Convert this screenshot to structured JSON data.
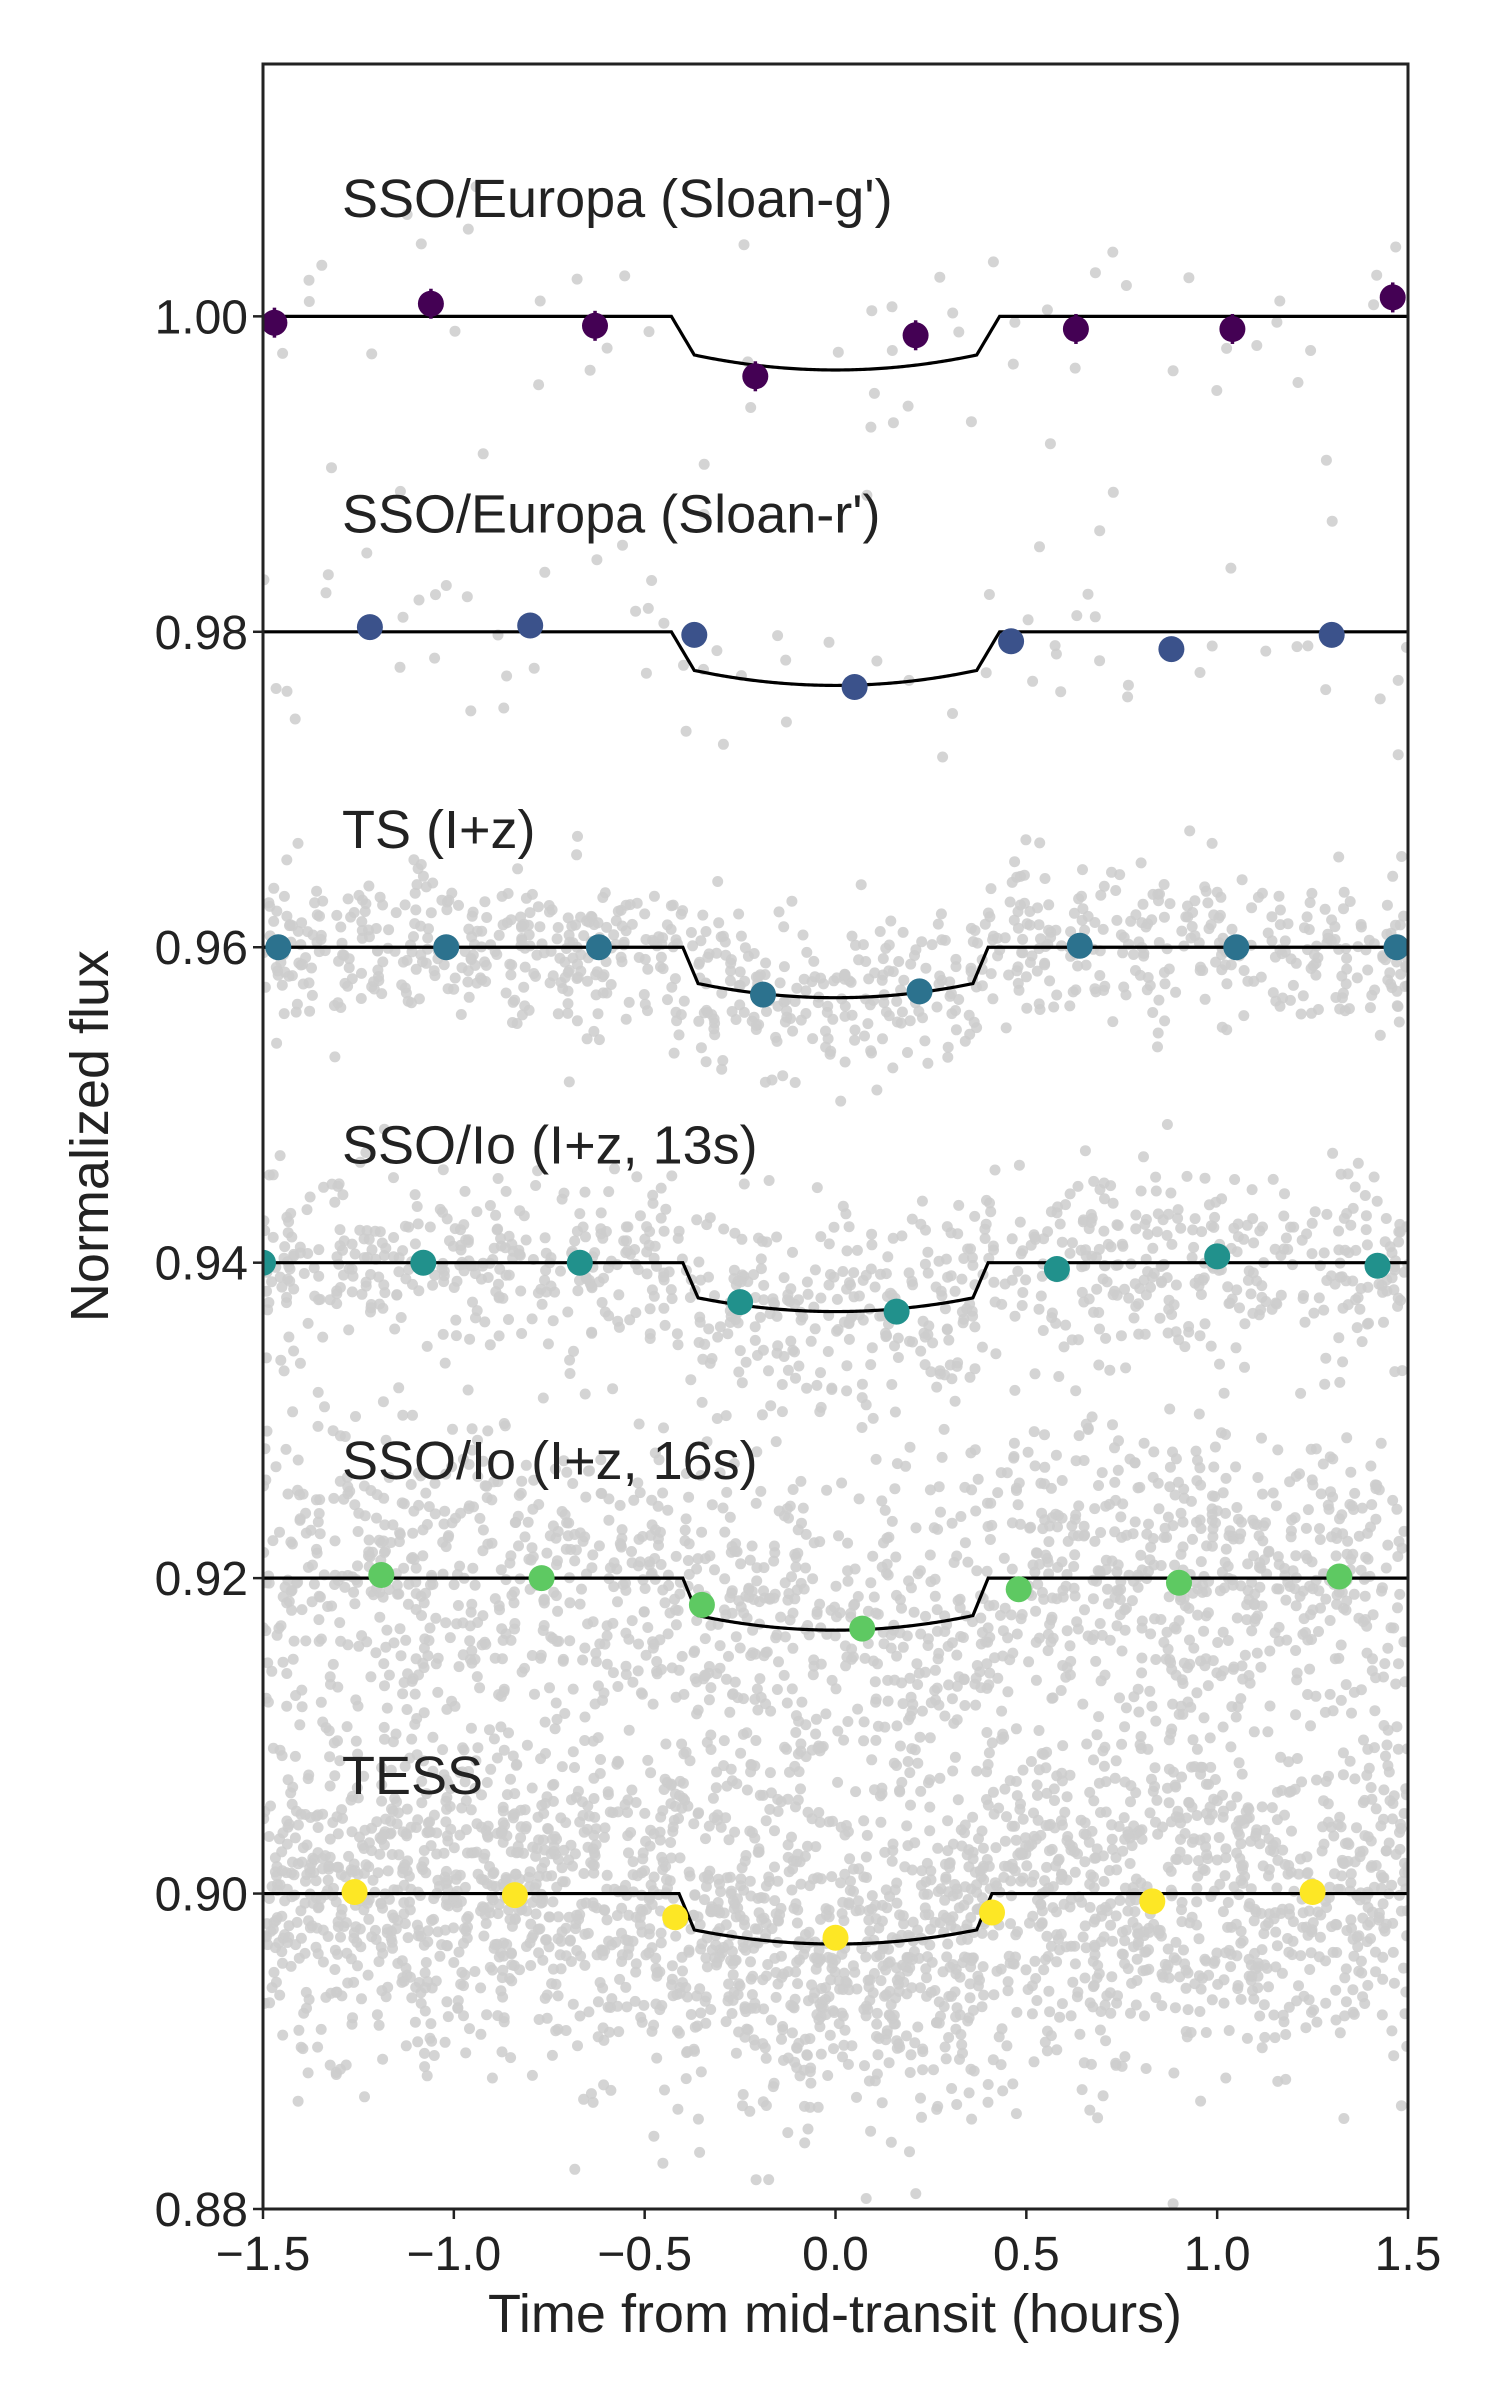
{
  "chart_data": {
    "type": "scatter",
    "title": "",
    "xlabel": "Time from mid-transit (hours)",
    "ylabel": "Normalized flux",
    "xlim": [
      -1.5,
      1.5
    ],
    "ylim": [
      0.88,
      1.016
    ],
    "grid": false,
    "xticks": [
      -1.5,
      -1.0,
      -0.5,
      0.0,
      0.5,
      1.0,
      1.5
    ],
    "xtick_labels": [
      "−1.5",
      "−1.0",
      "−0.5",
      "0.0",
      "0.5",
      "1.0",
      "1.5"
    ],
    "yticks": [
      0.88,
      0.9,
      0.92,
      0.94,
      0.96,
      0.98,
      1.0
    ],
    "ytick_labels": [
      "0.88",
      "0.90",
      "0.92",
      "0.94",
      "0.96",
      "0.98",
      "1.00"
    ],
    "raw_point_color": "#cccccc",
    "model_color": "#000000",
    "series": [
      {
        "name": "SSO/Europa (Sloan-g')",
        "baseline": 1.0,
        "color": "#440154",
        "error_bars": true,
        "model": {
          "t_ingress": -0.43,
          "t_full": -0.37,
          "depth": 0.0034
        },
        "raw": {
          "count": 60,
          "scatter": 0.0045
        },
        "binned_x": [
          -1.47,
          -1.06,
          -0.63,
          -0.21,
          0.21,
          0.63,
          1.04,
          1.46
        ],
        "binned_y": [
          0.9996,
          1.0008,
          0.9994,
          0.9962,
          0.9988,
          0.9992,
          0.9992,
          1.0012
        ]
      },
      {
        "name": "SSO/Europa (Sloan-r')",
        "baseline": 0.98,
        "color": "#3b528b",
        "error_bars": false,
        "model": {
          "t_ingress": -0.43,
          "t_full": -0.37,
          "depth": 0.0034
        },
        "raw": {
          "count": 70,
          "scatter": 0.0035
        },
        "binned_x": [
          -1.22,
          -0.8,
          -0.37,
          0.05,
          0.46,
          0.88,
          1.3
        ],
        "binned_y": [
          0.9803,
          0.9804,
          0.9798,
          0.9765,
          0.9794,
          0.9789,
          0.9798
        ]
      },
      {
        "name": "TS (I+z)",
        "baseline": 0.96,
        "color": "#2c728e",
        "error_bars": false,
        "model": {
          "t_ingress": -0.4,
          "t_full": -0.36,
          "depth": 0.0032
        },
        "raw": {
          "count": 850,
          "scatter": 0.0026
        },
        "binned_x": [
          -1.46,
          -1.02,
          -0.62,
          -0.19,
          0.22,
          0.64,
          1.05,
          1.47
        ],
        "binned_y": [
          0.96,
          0.96,
          0.96,
          0.957,
          0.9572,
          0.9601,
          0.96,
          0.96
        ]
      },
      {
        "name": "SSO/Io (I+z, 13s)",
        "baseline": 0.94,
        "color": "#21918c",
        "error_bars": false,
        "model": {
          "t_ingress": -0.4,
          "t_full": -0.36,
          "depth": 0.0031
        },
        "raw": {
          "count": 900,
          "scatter": 0.003
        },
        "binned_x": [
          -1.5,
          -1.08,
          -0.67,
          -0.25,
          0.16,
          0.58,
          1.0,
          1.42
        ],
        "binned_y": [
          0.94,
          0.94,
          0.94,
          0.9375,
          0.9369,
          0.9396,
          0.9404,
          0.9398
        ]
      },
      {
        "name": "SSO/Io (I+z, 16s)",
        "baseline": 0.92,
        "color": "#5ec962",
        "error_bars": false,
        "model": {
          "t_ingress": -0.4,
          "t_full": -0.36,
          "depth": 0.0033
        },
        "raw": {
          "count": 1500,
          "scatter": 0.005
        },
        "binned_x": [
          -1.19,
          -0.77,
          -0.35,
          0.07,
          0.48,
          0.9,
          1.32
        ],
        "binned_y": [
          0.9202,
          0.92,
          0.9183,
          0.9168,
          0.9193,
          0.9197,
          0.9201
        ]
      },
      {
        "name": "TESS",
        "baseline": 0.9,
        "color": "#fde725",
        "error_bars": false,
        "model": {
          "t_ingress": -0.41,
          "t_full": -0.37,
          "depth": 0.0032
        },
        "raw": {
          "count": 2400,
          "scatter": 0.0055
        },
        "binned_x": [
          -1.26,
          -0.84,
          -0.42,
          0.0,
          0.41,
          0.83,
          1.25
        ],
        "binned_y": [
          0.9001,
          0.8999,
          0.8985,
          0.8972,
          0.8988,
          0.8995,
          0.9001
        ]
      }
    ]
  }
}
